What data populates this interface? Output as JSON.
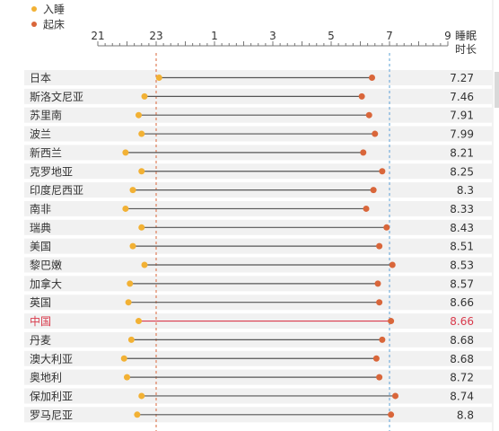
{
  "chart_data": {
    "type": "dumbbell",
    "legend": [
      {
        "label": "入睡",
        "color": "#f2b134"
      },
      {
        "label": "起床",
        "color": "#d9663a"
      }
    ],
    "axis": {
      "ticks": [
        {
          "label": "21",
          "hour": -3
        },
        {
          "label": "23",
          "hour": -1
        },
        {
          "label": "1",
          "hour": 1
        },
        {
          "label": "3",
          "hour": 3
        },
        {
          "label": "5",
          "hour": 5
        },
        {
          "label": "7",
          "hour": 7
        },
        {
          "label": "9",
          "hour": 9
        }
      ],
      "range": [
        -3,
        9
      ],
      "reference_lines": [
        -1,
        7
      ]
    },
    "value_header": [
      "睡眠",
      "时长"
    ],
    "highlight_color": "#d93a4c",
    "rows": [
      {
        "country": "日本",
        "sleep": 23.1,
        "wake": 6.4,
        "duration": "7.27"
      },
      {
        "country": "斯洛文尼亚",
        "sleep": 22.6,
        "wake": 6.05,
        "duration": "7.46"
      },
      {
        "country": "苏里南",
        "sleep": 22.4,
        "wake": 6.3,
        "duration": "7.91"
      },
      {
        "country": "波兰",
        "sleep": 22.5,
        "wake": 6.5,
        "duration": "7.99"
      },
      {
        "country": "新西兰",
        "sleep": 21.95,
        "wake": 6.1,
        "duration": "8.21"
      },
      {
        "country": "克罗地亚",
        "sleep": 22.5,
        "wake": 6.75,
        "duration": "8.25"
      },
      {
        "country": "印度尼西亚",
        "sleep": 22.2,
        "wake": 6.45,
        "duration": "8.3"
      },
      {
        "country": "南非",
        "sleep": 21.95,
        "wake": 6.2,
        "duration": "8.33"
      },
      {
        "country": "瑞典",
        "sleep": 22.5,
        "wake": 6.9,
        "duration": "8.43"
      },
      {
        "country": "美国",
        "sleep": 22.2,
        "wake": 6.65,
        "duration": "8.51"
      },
      {
        "country": "黎巴嫩",
        "sleep": 22.6,
        "wake": 7.1,
        "duration": "8.53"
      },
      {
        "country": "加拿大",
        "sleep": 22.1,
        "wake": 6.6,
        "duration": "8.57"
      },
      {
        "country": "英国",
        "sleep": 22.05,
        "wake": 6.65,
        "duration": "8.66"
      },
      {
        "country": "中国",
        "sleep": 22.4,
        "wake": 7.05,
        "duration": "8.66",
        "highlight": true
      },
      {
        "country": "丹麦",
        "sleep": 22.15,
        "wake": 6.75,
        "duration": "8.68"
      },
      {
        "country": "澳大利亚",
        "sleep": 21.9,
        "wake": 6.55,
        "duration": "8.68"
      },
      {
        "country": "奥地利",
        "sleep": 22.0,
        "wake": 6.65,
        "duration": "8.72"
      },
      {
        "country": "保加利亚",
        "sleep": 22.5,
        "wake": 7.2,
        "duration": "8.74"
      },
      {
        "country": "罗马尼亚",
        "sleep": 22.35,
        "wake": 7.05,
        "duration": "8.8"
      }
    ]
  }
}
